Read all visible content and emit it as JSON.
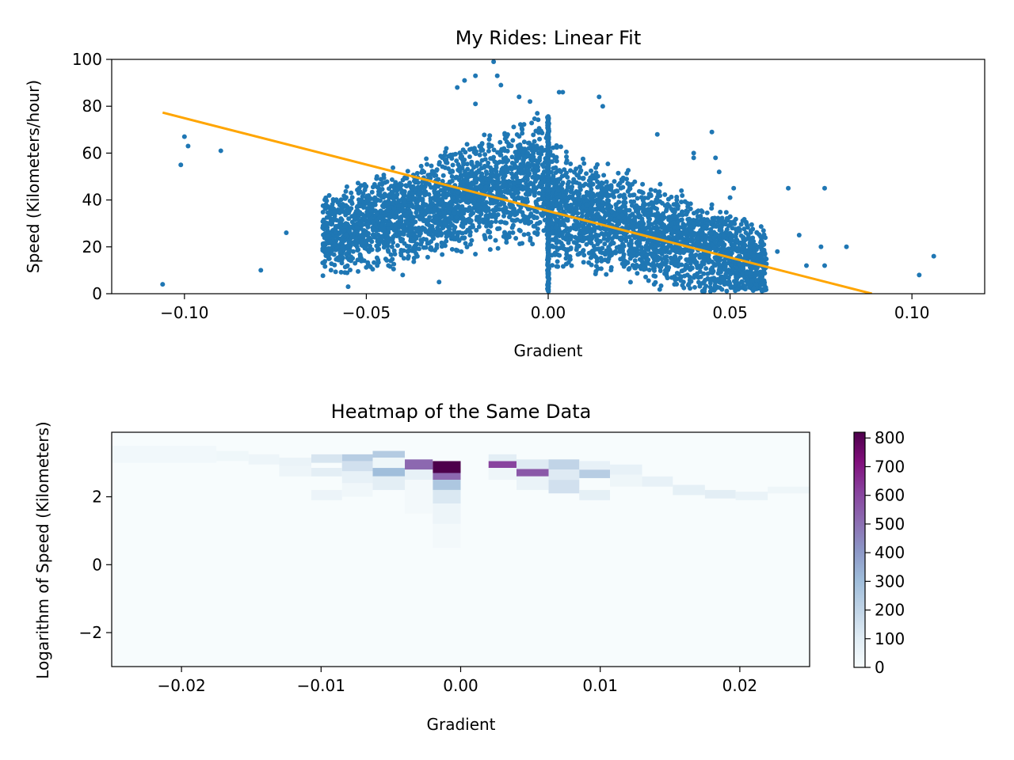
{
  "chart_data": [
    {
      "type": "scatter",
      "title": "My Rides: Linear Fit",
      "xlabel": "Gradient",
      "ylabel": "Speed (Kilometers/hour)",
      "xlim": [
        -0.12,
        0.12
      ],
      "ylim": [
        0,
        100
      ],
      "xticks": [
        -0.1,
        -0.05,
        0.0,
        0.05,
        0.1
      ],
      "xtick_labels": [
        "−0.10",
        "−0.05",
        "0.00",
        "0.05",
        "0.10"
      ],
      "yticks": [
        0,
        20,
        40,
        60,
        80,
        100
      ],
      "ytick_labels": [
        "0",
        "20",
        "40",
        "60",
        "80",
        "100"
      ],
      "grid": false,
      "series": [
        {
          "kind": "points",
          "color": "#1f77b4",
          "note_dense_cloud": [
            {
              "x_range": [
                -0.062,
                0.0
              ],
              "y_range": [
                5,
                75
              ]
            },
            {
              "x_range": [
                0.0,
                0.06
              ],
              "y_range": [
                3,
                70
              ]
            }
          ],
          "points": [
            [
              -0.106,
              4
            ],
            [
              -0.1,
              67
            ],
            [
              -0.099,
              63
            ],
            [
              -0.101,
              55
            ],
            [
              -0.09,
              61
            ],
            [
              -0.079,
              10
            ],
            [
              -0.072,
              26
            ],
            [
              -0.06,
              35
            ],
            [
              -0.055,
              3
            ],
            [
              -0.047,
              12
            ],
            [
              -0.04,
              8
            ],
            [
              -0.037,
              50
            ],
            [
              -0.03,
              5
            ],
            [
              -0.028,
              62
            ],
            [
              -0.025,
              88
            ],
            [
              -0.023,
              91
            ],
            [
              -0.02,
              93
            ],
            [
              -0.02,
              81
            ],
            [
              -0.015,
              99
            ],
            [
              -0.014,
              93
            ],
            [
              -0.013,
              89
            ],
            [
              -0.008,
              84
            ],
            [
              -0.005,
              82
            ],
            [
              -0.003,
              77
            ],
            [
              0.0,
              72
            ],
            [
              0.003,
              86
            ],
            [
              0.004,
              86
            ],
            [
              0.014,
              84
            ],
            [
              0.015,
              80
            ],
            [
              0.03,
              68
            ],
            [
              0.04,
              60
            ],
            [
              0.04,
              58
            ],
            [
              0.045,
              69
            ],
            [
              0.046,
              58
            ],
            [
              0.047,
              52
            ],
            [
              0.05,
              41
            ],
            [
              0.051,
              45
            ],
            [
              0.055,
              25
            ],
            [
              0.058,
              20
            ],
            [
              0.063,
              18
            ],
            [
              0.066,
              45
            ],
            [
              0.069,
              25
            ],
            [
              0.071,
              12
            ],
            [
              0.075,
              20
            ],
            [
              0.076,
              45
            ],
            [
              0.076,
              12
            ],
            [
              0.082,
              20
            ],
            [
              0.102,
              8
            ],
            [
              0.106,
              16
            ],
            [
              0.04,
              30
            ],
            [
              0.035,
              33
            ],
            [
              0.02,
              45
            ],
            [
              0.03,
              40
            ],
            [
              0.045,
              38
            ]
          ]
        },
        {
          "kind": "line",
          "name": "",
          "color": "#ffa500",
          "x": [
            -0.106,
            0.089
          ],
          "y": [
            77.3,
            0
          ]
        }
      ]
    },
    {
      "type": "heatmap",
      "title": "Heatmap of the Same Data",
      "xlabel": "Gradient",
      "ylabel": "Logarithm of Speed (Kilometers)",
      "xlim": [
        -0.025,
        0.025
      ],
      "ylim": [
        -3,
        3.9
      ],
      "xticks": [
        -0.02,
        -0.01,
        0.0,
        0.01,
        0.02
      ],
      "xtick_labels": [
        "−0.02",
        "−0.01",
        "0.00",
        "0.01",
        "0.02"
      ],
      "yticks": [
        -2,
        0,
        2
      ],
      "ytick_labels": [
        "−2",
        "0",
        "2"
      ],
      "colorbar": {
        "min": 0,
        "max": 820,
        "ticks": [
          0,
          100,
          200,
          300,
          400,
          500,
          600,
          700,
          800
        ],
        "tick_labels": [
          "0",
          "100",
          "200",
          "300",
          "400",
          "500",
          "600",
          "700",
          "800"
        ],
        "colors": [
          "#f7fcfd",
          "#e0ecf4",
          "#bfd3e6",
          "#9ebcda",
          "#8c96c6",
          "#8c6bb1",
          "#88419d",
          "#810f7c",
          "#4d004b"
        ]
      },
      "cells": [
        {
          "x": [
            -0.002,
            0.0
          ],
          "y": [
            2.7,
            3.05
          ],
          "value": 820
        },
        {
          "x": [
            -0.002,
            0.0
          ],
          "y": [
            2.5,
            2.7
          ],
          "value": 520
        },
        {
          "x": [
            -0.002,
            0.0
          ],
          "y": [
            2.2,
            2.5
          ],
          "value": 260
        },
        {
          "x": [
            -0.002,
            0.0
          ],
          "y": [
            1.8,
            2.2
          ],
          "value": 120
        },
        {
          "x": [
            -0.002,
            0.0
          ],
          "y": [
            1.2,
            1.8
          ],
          "value": 45
        },
        {
          "x": [
            -0.002,
            0.0
          ],
          "y": [
            0.5,
            1.2
          ],
          "value": 18
        },
        {
          "x": [
            -0.004,
            -0.002
          ],
          "y": [
            2.8,
            3.1
          ],
          "value": 520
        },
        {
          "x": [
            -0.004,
            -0.002
          ],
          "y": [
            2.5,
            2.8
          ],
          "value": 70
        },
        {
          "x": [
            -0.004,
            -0.002
          ],
          "y": [
            1.5,
            2.5
          ],
          "value": 20
        },
        {
          "x": [
            0.002,
            0.004
          ],
          "y": [
            2.85,
            3.05
          ],
          "value": 610
        },
        {
          "x": [
            0.002,
            0.004
          ],
          "y": [
            3.05,
            3.25
          ],
          "value": 90
        },
        {
          "x": [
            0.002,
            0.004
          ],
          "y": [
            2.5,
            2.85
          ],
          "value": 40
        },
        {
          "x": [
            0.004,
            0.0063
          ],
          "y": [
            2.6,
            2.82
          ],
          "value": 560
        },
        {
          "x": [
            0.004,
            0.0063
          ],
          "y": [
            2.82,
            3.1
          ],
          "value": 110
        },
        {
          "x": [
            0.004,
            0.0063
          ],
          "y": [
            2.2,
            2.6
          ],
          "value": 60
        },
        {
          "x": [
            -0.0063,
            -0.004
          ],
          "y": [
            2.6,
            2.85
          ],
          "value": 300
        },
        {
          "x": [
            -0.0063,
            -0.004
          ],
          "y": [
            3.15,
            3.35
          ],
          "value": 240
        },
        {
          "x": [
            -0.0063,
            -0.004
          ],
          "y": [
            2.2,
            2.6
          ],
          "value": 90
        },
        {
          "x": [
            -0.0063,
            -0.004
          ],
          "y": [
            2.85,
            3.15
          ],
          "value": 40
        },
        {
          "x": [
            -0.0085,
            -0.0063
          ],
          "y": [
            3.05,
            3.25
          ],
          "value": 230
        },
        {
          "x": [
            -0.0085,
            -0.0063
          ],
          "y": [
            2.75,
            3.05
          ],
          "value": 150
        },
        {
          "x": [
            -0.0085,
            -0.0063
          ],
          "y": [
            2.4,
            2.75
          ],
          "value": 70
        },
        {
          "x": [
            -0.0085,
            -0.0063
          ],
          "y": [
            2.0,
            2.4
          ],
          "value": 30
        },
        {
          "x": [
            0.0063,
            0.0085
          ],
          "y": [
            2.8,
            3.1
          ],
          "value": 200
        },
        {
          "x": [
            0.0063,
            0.0085
          ],
          "y": [
            2.5,
            2.8
          ],
          "value": 110
        },
        {
          "x": [
            0.0063,
            0.0085
          ],
          "y": [
            2.1,
            2.5
          ],
          "value": 150
        },
        {
          "x": [
            0.0085,
            0.0107
          ],
          "y": [
            2.55,
            2.8
          ],
          "value": 230
        },
        {
          "x": [
            0.0085,
            0.0107
          ],
          "y": [
            2.8,
            3.05
          ],
          "value": 70
        },
        {
          "x": [
            0.0085,
            0.0107
          ],
          "y": [
            1.9,
            2.2
          ],
          "value": 80
        },
        {
          "x": [
            -0.0107,
            -0.0085
          ],
          "y": [
            3.0,
            3.25
          ],
          "value": 130
        },
        {
          "x": [
            -0.0107,
            -0.0085
          ],
          "y": [
            2.6,
            2.85
          ],
          "value": 90
        },
        {
          "x": [
            -0.0107,
            -0.0085
          ],
          "y": [
            1.9,
            2.2
          ],
          "value": 50
        },
        {
          "x": [
            -0.013,
            -0.0107
          ],
          "y": [
            2.9,
            3.15
          ],
          "value": 60
        },
        {
          "x": [
            -0.013,
            -0.0107
          ],
          "y": [
            2.6,
            2.9
          ],
          "value": 45
        },
        {
          "x": [
            0.0107,
            0.013
          ],
          "y": [
            2.65,
            2.95
          ],
          "value": 70
        },
        {
          "x": [
            0.0107,
            0.013
          ],
          "y": [
            2.3,
            2.65
          ],
          "value": 40
        },
        {
          "x": [
            0.013,
            0.0152
          ],
          "y": [
            2.3,
            2.6
          ],
          "value": 70
        },
        {
          "x": [
            0.0152,
            0.0175
          ],
          "y": [
            2.05,
            2.35
          ],
          "value": 80
        },
        {
          "x": [
            0.0175,
            0.0197
          ],
          "y": [
            1.95,
            2.2
          ],
          "value": 90
        },
        {
          "x": [
            0.0197,
            0.022
          ],
          "y": [
            1.9,
            2.15
          ],
          "value": 60
        },
        {
          "x": [
            0.022,
            0.025
          ],
          "y": [
            2.1,
            2.3
          ],
          "value": 40
        },
        {
          "x": [
            -0.0152,
            -0.013
          ],
          "y": [
            2.95,
            3.25
          ],
          "value": 45
        },
        {
          "x": [
            -0.0175,
            -0.0152
          ],
          "y": [
            3.05,
            3.35
          ],
          "value": 35
        },
        {
          "x": [
            -0.025,
            -0.0175
          ],
          "y": [
            3.0,
            3.5
          ],
          "value": 25
        }
      ]
    }
  ]
}
